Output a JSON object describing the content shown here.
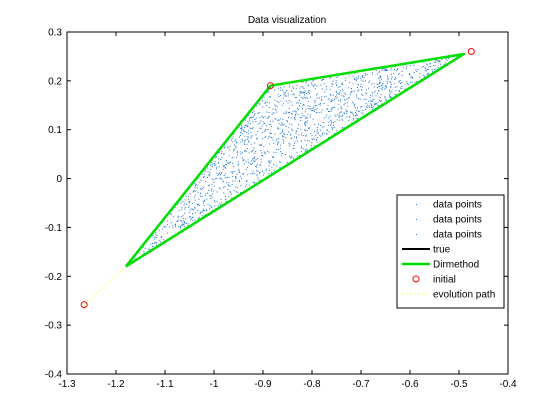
{
  "chart_data": {
    "type": "scatter",
    "title": "Data visualization",
    "xlabel": "",
    "ylabel": "",
    "xlim": [
      -1.3,
      -0.4
    ],
    "ylim": [
      -0.4,
      0.3
    ],
    "xticks": [
      -1.3,
      -1.2,
      -1.1,
      -1.0,
      -0.9,
      -0.8,
      -0.7,
      -0.6,
      -0.5,
      -0.4
    ],
    "xtick_labels": [
      "-1.3",
      "-1.2",
      "-1.1",
      "-1",
      "-0.9",
      "-0.8",
      "-0.7",
      "-0.6",
      "-0.5",
      "-0.4"
    ],
    "yticks": [
      -0.4,
      -0.3,
      -0.2,
      -0.1,
      0.0,
      0.1,
      0.2,
      0.3
    ],
    "ytick_labels": [
      "-0.4",
      "-0.3",
      "-0.2",
      "-0.1",
      "0",
      "0.1",
      "0.2",
      "0.3"
    ],
    "grid": false,
    "legend_position": "right",
    "data_points": {
      "triangle_vertices": [
        [
          -1.18,
          -0.18
        ],
        [
          -0.885,
          0.19
        ],
        [
          -0.49,
          0.255
        ]
      ],
      "count": 1500,
      "color": "#1f77d4"
    },
    "series": [
      {
        "name": "data points",
        "kind": "points",
        "color": "#1f77d4"
      },
      {
        "name": "data points",
        "kind": "points",
        "color": "#1f77d4"
      },
      {
        "name": "data points",
        "kind": "points",
        "color": "#1f77d4"
      },
      {
        "name": "true",
        "kind": "line",
        "color": "#000000",
        "x": [
          -1.18,
          -0.49
        ],
        "y": [
          -0.18,
          0.255
        ]
      },
      {
        "name": "Dirmethod",
        "kind": "line",
        "color": "#00e000",
        "x": [
          -1.18,
          -0.885,
          -0.49,
          -1.18
        ],
        "y": [
          -0.18,
          0.19,
          0.255,
          -0.18
        ]
      },
      {
        "name": "initial",
        "kind": "marker",
        "color": "#ff0000",
        "x": [
          -1.265,
          -0.885,
          -0.475
        ],
        "y": [
          -0.258,
          0.19,
          0.26
        ]
      },
      {
        "name": "evolution path",
        "kind": "path",
        "color": "#ffff66",
        "x": [
          -1.265,
          -1.18
        ],
        "y": [
          -0.258,
          -0.18
        ]
      }
    ]
  }
}
